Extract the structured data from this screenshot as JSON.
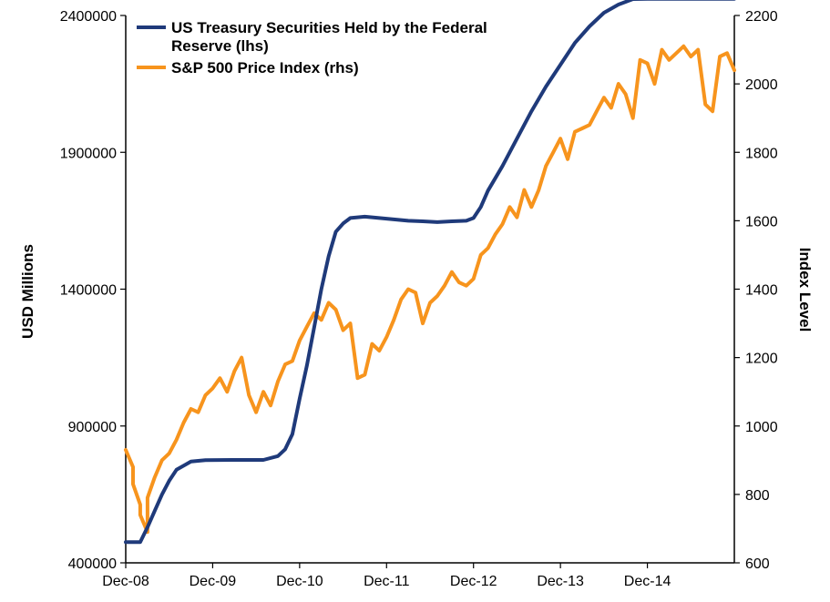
{
  "chart_data": {
    "type": "line",
    "title": "",
    "ylabel_left": "USD Millions",
    "ylabel_right": "Index Level",
    "x_ticks": [
      "Dec-08",
      "Dec-09",
      "Dec-10",
      "Dec-11",
      "Dec-12",
      "Dec-13",
      "Dec-14"
    ],
    "x_range": [
      "2008-12",
      "2015-12"
    ],
    "ylim_left": [
      400000,
      2400000
    ],
    "yticks_left": [
      "400000",
      "900000",
      "1400000",
      "1900000",
      "2400000"
    ],
    "yticks_left_values": [
      400000,
      900000,
      1400000,
      1900000,
      2400000
    ],
    "ylim_right": [
      600,
      2200
    ],
    "yticks_right": [
      "600",
      "800",
      "1000",
      "1200",
      "1400",
      "1600",
      "1800",
      "2000",
      "2200"
    ],
    "yticks_right_values": [
      600,
      800,
      1000,
      1200,
      1400,
      1600,
      1800,
      2000,
      2200
    ],
    "grid": false,
    "legend_position": "top-left",
    "series": [
      {
        "name": "US Treasury Securities Held by the Federal Reserve (lhs)",
        "legend_lines": [
          "US Treasury Securities Held by the Federal",
          "Reserve (lhs)"
        ],
        "axis": "left",
        "color": "#1f3a7a",
        "points": [
          [
            "2008-12",
            476000
          ],
          [
            "2009-02",
            476000
          ],
          [
            "2009-03",
            530000
          ],
          [
            "2009-04",
            590000
          ],
          [
            "2009-05",
            650000
          ],
          [
            "2009-06",
            700000
          ],
          [
            "2009-07",
            740000
          ],
          [
            "2009-09",
            770000
          ],
          [
            "2009-11",
            775000
          ],
          [
            "2010-03",
            776000
          ],
          [
            "2010-07",
            776000
          ],
          [
            "2010-09",
            790000
          ],
          [
            "2010-10",
            815000
          ],
          [
            "2010-11",
            870000
          ],
          [
            "2010-12",
            1000000
          ],
          [
            "2011-01",
            1120000
          ],
          [
            "2011-02",
            1260000
          ],
          [
            "2011-03",
            1400000
          ],
          [
            "2011-04",
            1520000
          ],
          [
            "2011-05",
            1610000
          ],
          [
            "2011-06",
            1640000
          ],
          [
            "2011-07",
            1660000
          ],
          [
            "2011-09",
            1665000
          ],
          [
            "2011-11",
            1660000
          ],
          [
            "2012-01",
            1655000
          ],
          [
            "2012-03",
            1650000
          ],
          [
            "2012-05",
            1648000
          ],
          [
            "2012-07",
            1645000
          ],
          [
            "2012-09",
            1648000
          ],
          [
            "2012-11",
            1650000
          ],
          [
            "2012-12",
            1660000
          ],
          [
            "2013-01",
            1700000
          ],
          [
            "2013-02",
            1760000
          ],
          [
            "2013-04",
            1850000
          ],
          [
            "2013-06",
            1950000
          ],
          [
            "2013-08",
            2050000
          ],
          [
            "2013-10",
            2140000
          ],
          [
            "2013-12",
            2220000
          ],
          [
            "2014-02",
            2300000
          ],
          [
            "2014-04",
            2360000
          ],
          [
            "2014-06",
            2410000
          ],
          [
            "2014-08",
            2440000
          ],
          [
            "2014-10",
            2460000
          ],
          [
            "2014-12",
            2461000
          ],
          [
            "2015-06",
            2461000
          ],
          [
            "2015-12",
            2461000
          ]
        ]
      },
      {
        "name": "S&P 500 Price Index (rhs)",
        "legend_lines": [
          "S&P 500 Price Index (rhs)"
        ],
        "axis": "right",
        "color": "#f7941d",
        "points": [
          [
            "2008-12",
            930
          ],
          [
            "2009-01",
            880
          ],
          [
            "2009-01",
            830
          ],
          [
            "2009-02",
            770
          ],
          [
            "2009-02",
            740
          ],
          [
            "2009-03",
            690
          ],
          [
            "2009-03",
            790
          ],
          [
            "2009-04",
            850
          ],
          [
            "2009-05",
            900
          ],
          [
            "2009-06",
            920
          ],
          [
            "2009-07",
            960
          ],
          [
            "2009-08",
            1010
          ],
          [
            "2009-09",
            1050
          ],
          [
            "2009-10",
            1040
          ],
          [
            "2009-11",
            1090
          ],
          [
            "2009-12",
            1110
          ],
          [
            "2010-01",
            1140
          ],
          [
            "2010-02",
            1100
          ],
          [
            "2010-03",
            1160
          ],
          [
            "2010-04",
            1200
          ],
          [
            "2010-05",
            1090
          ],
          [
            "2010-06",
            1040
          ],
          [
            "2010-07",
            1100
          ],
          [
            "2010-08",
            1060
          ],
          [
            "2010-09",
            1130
          ],
          [
            "2010-10",
            1180
          ],
          [
            "2010-11",
            1190
          ],
          [
            "2010-12",
            1250
          ],
          [
            "2011-01",
            1290
          ],
          [
            "2011-02",
            1330
          ],
          [
            "2011-03",
            1310
          ],
          [
            "2011-04",
            1360
          ],
          [
            "2011-05",
            1340
          ],
          [
            "2011-06",
            1280
          ],
          [
            "2011-07",
            1300
          ],
          [
            "2011-08",
            1140
          ],
          [
            "2011-09",
            1150
          ],
          [
            "2011-10",
            1240
          ],
          [
            "2011-11",
            1220
          ],
          [
            "2011-12",
            1260
          ],
          [
            "2012-01",
            1310
          ],
          [
            "2012-02",
            1370
          ],
          [
            "2012-03",
            1400
          ],
          [
            "2012-04",
            1390
          ],
          [
            "2012-05",
            1300
          ],
          [
            "2012-06",
            1360
          ],
          [
            "2012-07",
            1380
          ],
          [
            "2012-08",
            1410
          ],
          [
            "2012-09",
            1450
          ],
          [
            "2012-10",
            1420
          ],
          [
            "2012-11",
            1410
          ],
          [
            "2012-12",
            1430
          ],
          [
            "2013-01",
            1500
          ],
          [
            "2013-02",
            1520
          ],
          [
            "2013-03",
            1560
          ],
          [
            "2013-04",
            1590
          ],
          [
            "2013-05",
            1640
          ],
          [
            "2013-06",
            1610
          ],
          [
            "2013-07",
            1690
          ],
          [
            "2013-08",
            1640
          ],
          [
            "2013-09",
            1690
          ],
          [
            "2013-10",
            1760
          ],
          [
            "2013-11",
            1800
          ],
          [
            "2013-12",
            1840
          ],
          [
            "2014-01",
            1780
          ],
          [
            "2014-02",
            1860
          ],
          [
            "2014-03",
            1870
          ],
          [
            "2014-04",
            1880
          ],
          [
            "2014-05",
            1920
          ],
          [
            "2014-06",
            1960
          ],
          [
            "2014-07",
            1930
          ],
          [
            "2014-08",
            2000
          ],
          [
            "2014-09",
            1970
          ],
          [
            "2014-10",
            1900
          ],
          [
            "2014-11",
            2070
          ],
          [
            "2014-12",
            2060
          ],
          [
            "2015-01",
            2000
          ],
          [
            "2015-02",
            2100
          ],
          [
            "2015-03",
            2070
          ],
          [
            "2015-04",
            2090
          ],
          [
            "2015-05",
            2110
          ],
          [
            "2015-06",
            2080
          ],
          [
            "2015-07",
            2100
          ],
          [
            "2015-08",
            1940
          ],
          [
            "2015-09",
            1920
          ],
          [
            "2015-10",
            2080
          ],
          [
            "2015-11",
            2090
          ],
          [
            "2015-12",
            2040
          ]
        ]
      }
    ]
  }
}
